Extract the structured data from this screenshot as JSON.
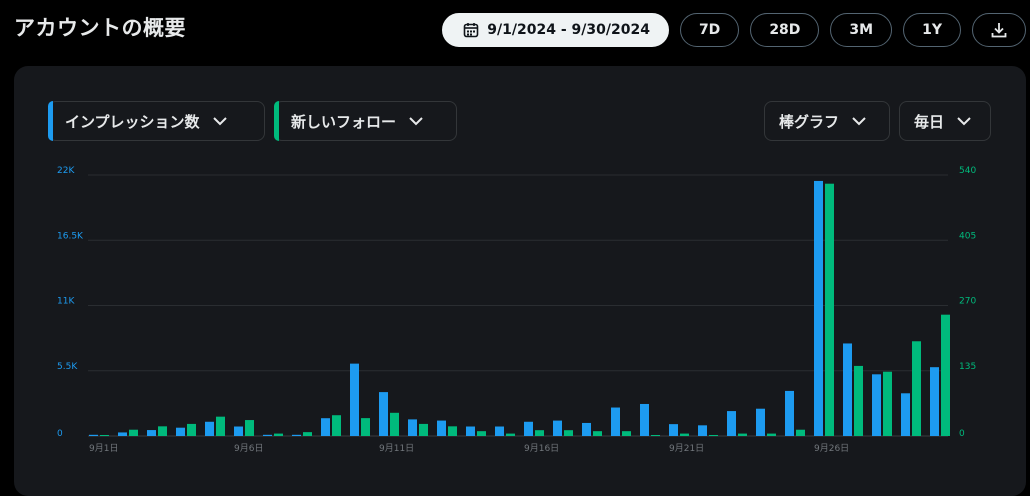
{
  "header": {
    "title": "アカウントの概要",
    "date_range": "9/1/2024 - 9/30/2024",
    "ranges": [
      "7D",
      "28D",
      "3M",
      "1Y"
    ]
  },
  "selectors": {
    "metric1": "インプレッション数",
    "metric2": "新しいフォロー",
    "chart_type": "棒グラフ",
    "interval": "毎日"
  },
  "colors": {
    "impressions": "#1d9bf0",
    "follows": "#00ba7c"
  },
  "icons": [
    "calendar-icon",
    "download-icon",
    "chevron-down-icon"
  ],
  "chart_data": {
    "type": "bar",
    "categories": [
      "9月1日",
      "9月2日",
      "9月3日",
      "9月4日",
      "9月5日",
      "9月6日",
      "9月7日",
      "9月8日",
      "9月9日",
      "9月10日",
      "9月11日",
      "9月12日",
      "9月13日",
      "9月14日",
      "9月15日",
      "9月16日",
      "9月17日",
      "9月18日",
      "9月19日",
      "9月20日",
      "9月21日",
      "9月22日",
      "9月23日",
      "9月24日",
      "9月25日",
      "9月26日",
      "9月27日",
      "9月28日",
      "9月29日",
      "9月30日"
    ],
    "x_tick_labels": [
      "9月1日",
      "9月6日",
      "9月11日",
      "9月16日",
      "9月21日",
      "9月26日"
    ],
    "series": [
      {
        "name": "インプレッション数",
        "axis": "left",
        "values": [
          100,
          300,
          500,
          700,
          1200,
          800,
          100,
          100,
          1500,
          6100,
          3700,
          1400,
          1300,
          800,
          800,
          1200,
          1300,
          1100,
          2400,
          2700,
          1000,
          900,
          2100,
          2300,
          3800,
          21500,
          7800,
          5200,
          3600,
          5800
        ]
      },
      {
        "name": "新しいフォロー",
        "axis": "right",
        "values": [
          2,
          13,
          20,
          25,
          40,
          33,
          5,
          8,
          43,
          37,
          48,
          25,
          20,
          10,
          5,
          12,
          12,
          10,
          10,
          2,
          5,
          2,
          5,
          5,
          13,
          522,
          145,
          133,
          196,
          251
        ]
      }
    ],
    "y_left": {
      "ticks": [
        "0",
        "5.5K",
        "11K",
        "16.5K",
        "22K"
      ],
      "max": 22000
    },
    "y_right": {
      "ticks": [
        "0",
        "135",
        "270",
        "405",
        "540"
      ],
      "max": 540
    },
    "grid": true,
    "legend": "none"
  }
}
